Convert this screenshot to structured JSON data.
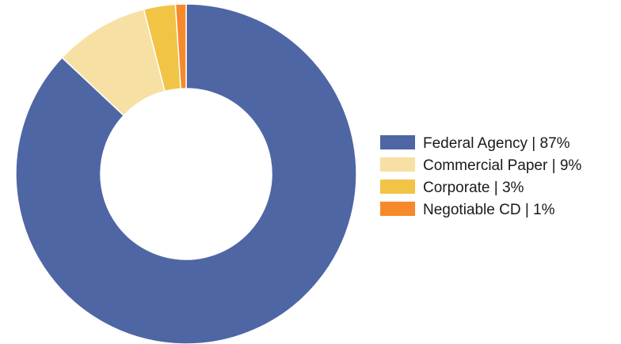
{
  "chart_data": {
    "type": "pie",
    "variant": "donut",
    "title": "",
    "legend_position": "right",
    "slices": [
      {
        "label": "Federal Agency | 87%",
        "category": "Federal Agency",
        "value": 87,
        "color": "#4f66a4"
      },
      {
        "label": "Commercial Paper | 9%",
        "category": "Commercial Paper",
        "value": 9,
        "color": "#f7e0a3"
      },
      {
        "label": "Corporate | 3%",
        "category": "Corporate",
        "value": 3,
        "color": "#f1c446"
      },
      {
        "label": "Negotiable CD | 1%",
        "category": "Negotiable CD",
        "value": 1,
        "color": "#f6892a"
      }
    ]
  }
}
